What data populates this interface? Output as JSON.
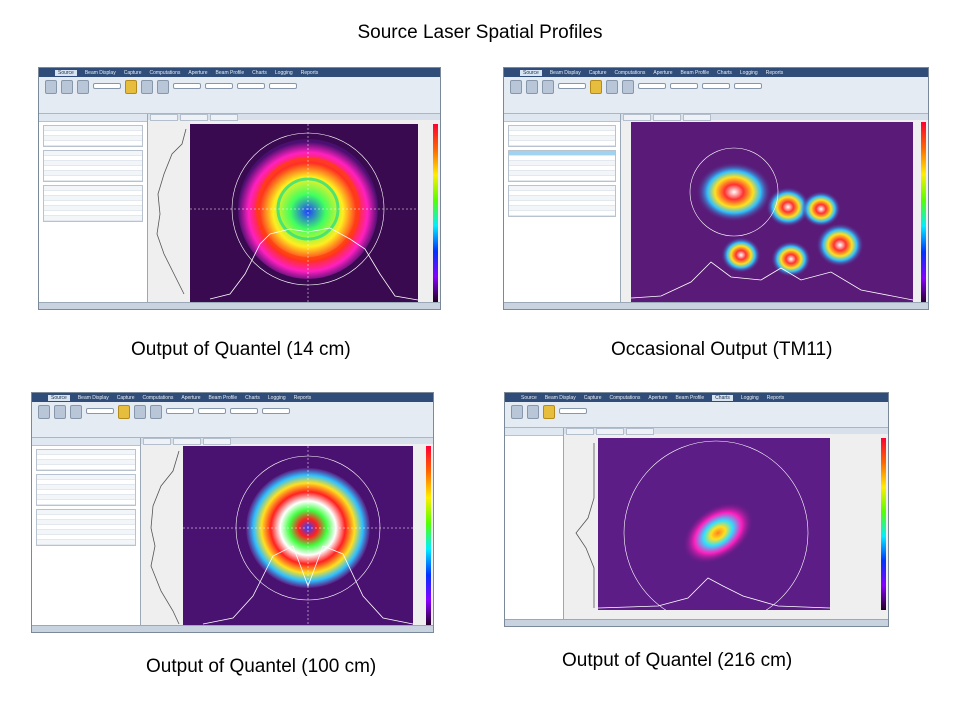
{
  "title": "Source Laser Spatial Profiles",
  "panels": [
    {
      "caption": "Output of Quantel (14 cm)"
    },
    {
      "caption": "Occasional Output (TM11)"
    },
    {
      "caption": "Output of Quantel (100 cm)"
    },
    {
      "caption": "Output of Quantel (216 cm)"
    }
  ],
  "menu": [
    "Source",
    "Beam Display",
    "Capture",
    "Computations",
    "Aperture",
    "Beam Profile",
    "Charts",
    "Logging",
    "Reports"
  ],
  "colors": {
    "beam_high": "#ffffff",
    "beam_mid": "#ff2020",
    "beam_low": "#20c0ff",
    "background": "#2a0a3a"
  }
}
